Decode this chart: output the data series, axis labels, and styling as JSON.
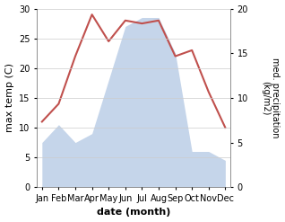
{
  "months": [
    "Jan",
    "Feb",
    "Mar",
    "Apr",
    "May",
    "Jun",
    "Jul",
    "Aug",
    "Sep",
    "Oct",
    "Nov",
    "Dec"
  ],
  "temperature": [
    11,
    14,
    22,
    29,
    24.5,
    28,
    27.5,
    28,
    22,
    23,
    16,
    10
  ],
  "precipitation": [
    5,
    7,
    5,
    6,
    12,
    18,
    19,
    19,
    15,
    4,
    4,
    3
  ],
  "temp_color": "#c0504d",
  "precip_fill_color": "#c5d5ea",
  "xlabel": "date (month)",
  "ylabel_left": "max temp (C)",
  "ylabel_right": "med. precipitation\n(kg/m2)",
  "ylim_left": [
    0,
    30
  ],
  "ylim_right": [
    0,
    20
  ],
  "yticks_left": [
    0,
    5,
    10,
    15,
    20,
    25,
    30
  ],
  "yticks_right": [
    0,
    5,
    10,
    15,
    20
  ],
  "temp_linewidth": 1.5
}
